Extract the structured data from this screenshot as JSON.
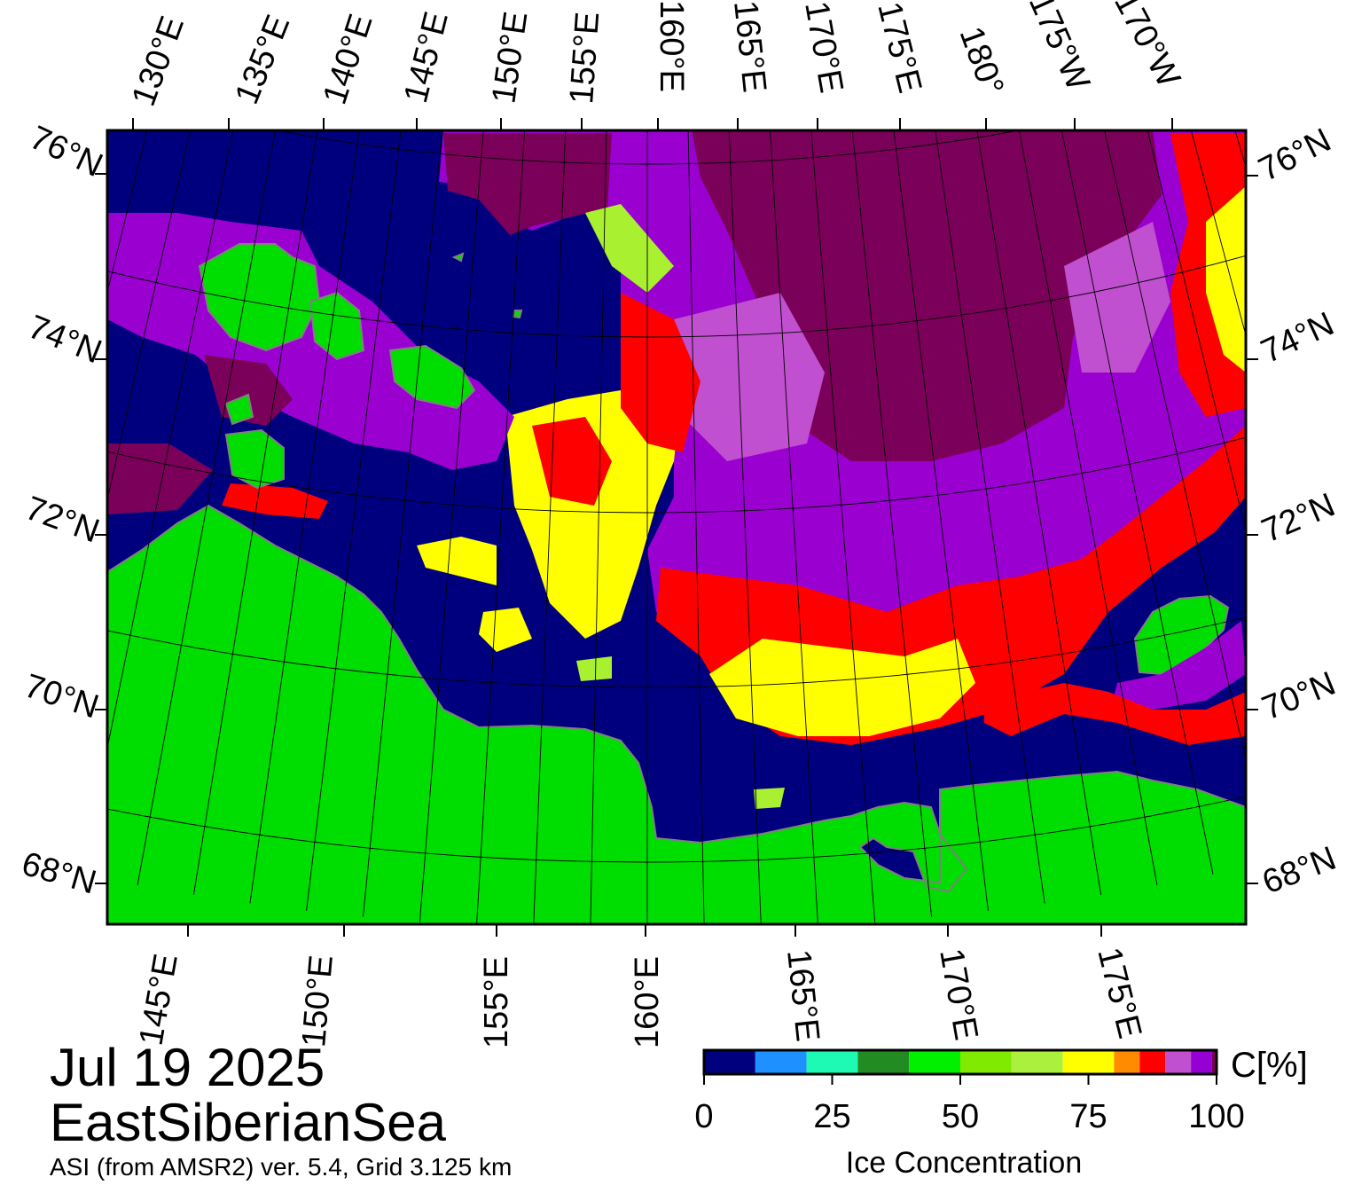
{
  "map": {
    "date": "Jul 19 2025",
    "region": "EastSiberianSea",
    "source": "ASI (from AMSR2) ver. 5.4,  Grid 3.125 km",
    "top_lon_labels": [
      "130°E",
      "135°E",
      "140°E",
      "145°E",
      "150°E",
      "155°E",
      "160°E",
      "165°E",
      "170°E",
      "175°E",
      "180°",
      "175°W",
      "170°W"
    ],
    "bottom_lon_labels": [
      "145°E",
      "150°E",
      "155°E",
      "160°E",
      "165°E",
      "170°E",
      "175°E"
    ],
    "left_lat_labels": [
      "76°N",
      "74°N",
      "72°N",
      "70°N",
      "68°N"
    ],
    "right_lat_labels": [
      "76°N",
      "74°N",
      "72°N",
      "70°N",
      "68°N"
    ],
    "colors": {
      "open_water": "#00007f",
      "land": "#00dd00",
      "high_ice": "#7b0059",
      "ice_90": "#9a00d0",
      "ice_80": "#ff0000",
      "ice_70": "#ffff00",
      "ice_60": "#a8f030"
    }
  },
  "colorbar": {
    "title": "Ice Concentration",
    "unit": "C[%]",
    "ticks": [
      {
        "value": 0,
        "label": "0"
      },
      {
        "value": 25,
        "label": "25"
      },
      {
        "value": 50,
        "label": "50"
      },
      {
        "value": 75,
        "label": "75"
      },
      {
        "value": 100,
        "label": "100"
      }
    ],
    "bins": [
      {
        "from": 0,
        "to": 10,
        "color": "#00007f"
      },
      {
        "from": 10,
        "to": 20,
        "color": "#1e90ff"
      },
      {
        "from": 20,
        "to": 30,
        "color": "#1efab4"
      },
      {
        "from": 30,
        "to": 40,
        "color": "#228b22"
      },
      {
        "from": 40,
        "to": 50,
        "color": "#00f000"
      },
      {
        "from": 50,
        "to": 60,
        "color": "#80ea00"
      },
      {
        "from": 60,
        "to": 70,
        "color": "#aaf03c"
      },
      {
        "from": 70,
        "to": 80,
        "color": "#ffff00"
      },
      {
        "from": 80,
        "to": 85,
        "color": "#ff8c00"
      },
      {
        "from": 85,
        "to": 90,
        "color": "#ff0000"
      },
      {
        "from": 90,
        "to": 95,
        "color": "#c050d0"
      },
      {
        "from": 95,
        "to": 99,
        "color": "#9400d3"
      },
      {
        "from": 99,
        "to": 100,
        "color": "#7b0059"
      }
    ]
  }
}
